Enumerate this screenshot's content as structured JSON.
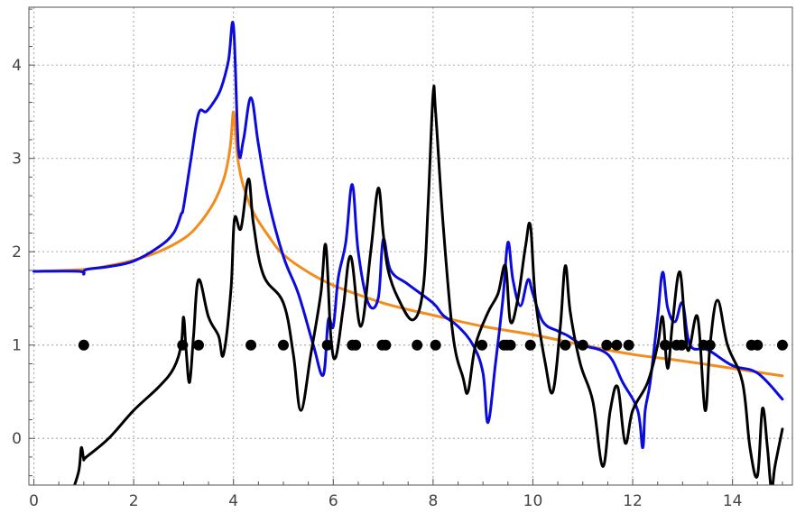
{
  "chart_data": {
    "type": "line",
    "title": "",
    "xlabel": "",
    "ylabel": "",
    "xlim": [
      -0.1,
      15.2
    ],
    "ylim": [
      -0.5,
      4.62
    ],
    "grid": true,
    "xticks": [
      0,
      2,
      4,
      6,
      8,
      10,
      12,
      14
    ],
    "yticks": [
      0,
      1,
      2,
      3,
      4
    ],
    "colors": {
      "orange": "#f28c1d",
      "blue": "#0b0bdd",
      "black": "#000000",
      "grid": "#b0b0b0",
      "frame": "#555555"
    },
    "series": [
      {
        "color": "#f28c1d",
        "type": "line",
        "x": [
          0,
          1,
          1.5,
          2,
          2.5,
          3,
          3.3,
          3.6,
          3.8,
          3.9,
          3.95,
          4.0,
          4.05,
          4.1,
          4.2,
          4.4,
          4.7,
          5.0,
          5.5,
          6,
          6.5,
          7,
          7.5,
          8,
          9,
          10,
          11,
          12,
          13,
          14,
          15
        ],
        "y": [
          1.79,
          1.81,
          1.85,
          1.91,
          2.0,
          2.14,
          2.29,
          2.52,
          2.77,
          3.0,
          3.2,
          3.5,
          3.2,
          2.95,
          2.7,
          2.42,
          2.17,
          1.97,
          1.78,
          1.64,
          1.54,
          1.45,
          1.38,
          1.32,
          1.2,
          1.11,
          1.0,
          0.9,
          0.83,
          0.75,
          0.67
        ]
      },
      {
        "color": "#0b0bdd",
        "type": "line",
        "x": [
          0,
          0.9,
          1.0,
          1.05,
          1.5,
          2,
          2.5,
          2.8,
          2.95,
          3.0,
          3.15,
          3.3,
          3.45,
          3.6,
          3.75,
          3.9,
          4.0,
          4.1,
          4.2,
          4.35,
          4.5,
          4.7,
          5.0,
          5.3,
          5.6,
          5.8,
          5.9,
          6.0,
          6.1,
          6.25,
          6.38,
          6.5,
          6.7,
          6.9,
          7.0,
          7.15,
          7.5,
          8.0,
          8.2,
          8.5,
          8.8,
          9.0,
          9.1,
          9.25,
          9.4,
          9.5,
          9.6,
          9.75,
          9.9,
          10.0,
          10.2,
          10.5,
          10.7,
          11.0,
          11.5,
          11.8,
          12.1,
          12.2,
          12.25,
          12.35,
          12.5,
          12.6,
          12.7,
          12.85,
          13.0,
          13.15,
          13.5,
          14.0,
          14.5,
          15.0
        ],
        "y": [
          1.79,
          1.79,
          1.76,
          1.81,
          1.84,
          1.9,
          2.05,
          2.2,
          2.4,
          2.48,
          3.0,
          3.48,
          3.5,
          3.6,
          3.75,
          4.05,
          4.42,
          3.1,
          3.2,
          3.65,
          3.15,
          2.55,
          1.95,
          1.55,
          1.0,
          0.68,
          1.27,
          1.2,
          1.72,
          2.1,
          2.72,
          2.0,
          1.45,
          1.5,
          2.13,
          1.8,
          1.65,
          1.45,
          1.32,
          1.2,
          1.0,
          0.7,
          0.17,
          0.8,
          1.5,
          2.1,
          1.7,
          1.42,
          1.7,
          1.55,
          1.25,
          1.15,
          1.1,
          1.0,
          0.9,
          0.6,
          0.3,
          -0.1,
          0.3,
          0.6,
          1.3,
          1.78,
          1.4,
          1.25,
          1.45,
          1.0,
          0.95,
          0.78,
          0.7,
          0.42
        ]
      },
      {
        "color": "#000000",
        "type": "line",
        "x": [
          0.75,
          0.9,
          0.95,
          1.0,
          1.05,
          1.5,
          2,
          2.5,
          2.8,
          2.95,
          3.0,
          3.05,
          3.12,
          3.2,
          3.3,
          3.5,
          3.7,
          3.8,
          3.95,
          4.02,
          4.15,
          4.3,
          4.4,
          4.6,
          5.0,
          5.2,
          5.35,
          5.55,
          5.75,
          5.85,
          5.95,
          6.05,
          6.2,
          6.35,
          6.55,
          6.75,
          6.9,
          7.0,
          7.1,
          7.3,
          7.6,
          7.8,
          7.9,
          8.0,
          8.05,
          8.2,
          8.4,
          8.6,
          8.7,
          8.85,
          9.1,
          9.3,
          9.45,
          9.55,
          9.7,
          9.85,
          9.95,
          10.05,
          10.25,
          10.4,
          10.55,
          10.65,
          10.75,
          10.95,
          11.2,
          11.4,
          11.55,
          11.7,
          11.85,
          12.0,
          12.3,
          12.5,
          12.6,
          12.7,
          12.8,
          12.95,
          13.1,
          13.3,
          13.45,
          13.55,
          13.7,
          13.9,
          14.2,
          14.35,
          14.5,
          14.6,
          14.7,
          14.78,
          14.85,
          15.0
        ],
        "y": [
          -0.6,
          -0.35,
          -0.1,
          -0.22,
          -0.2,
          0.0,
          0.3,
          0.55,
          0.75,
          1.0,
          1.3,
          0.95,
          0.6,
          1.1,
          1.7,
          1.3,
          1.1,
          0.9,
          1.6,
          2.35,
          2.25,
          2.78,
          2.3,
          1.75,
          1.45,
          0.9,
          0.3,
          0.9,
          1.55,
          2.07,
          1.1,
          0.87,
          1.4,
          1.95,
          1.2,
          2.0,
          2.68,
          2.2,
          1.8,
          1.5,
          1.27,
          1.6,
          2.5,
          3.69,
          3.5,
          2.3,
          1.1,
          0.65,
          0.5,
          1.0,
          1.35,
          1.55,
          1.85,
          1.25,
          1.5,
          2.05,
          2.28,
          1.5,
          0.8,
          0.5,
          1.2,
          1.85,
          1.35,
          0.8,
          0.4,
          -0.3,
          0.3,
          0.55,
          -0.05,
          0.3,
          0.6,
          1.0,
          1.3,
          0.75,
          1.25,
          1.78,
          0.95,
          1.3,
          0.3,
          1.0,
          1.48,
          1.0,
          0.6,
          -0.1,
          -0.4,
          0.32,
          -0.1,
          -0.55,
          -0.3,
          0.1
        ]
      }
    ],
    "points": {
      "color": "#000000",
      "y": 1,
      "x": [
        1.0,
        2.98,
        3.3,
        4.35,
        5.0,
        5.88,
        6.38,
        6.45,
        6.98,
        7.05,
        7.68,
        8.05,
        8.98,
        9.42,
        9.48,
        9.55,
        9.95,
        10.65,
        11.0,
        11.48,
        11.68,
        11.92,
        12.65,
        12.88,
        12.98,
        13.42,
        13.55,
        14.38,
        14.5,
        15.0
      ]
    }
  }
}
